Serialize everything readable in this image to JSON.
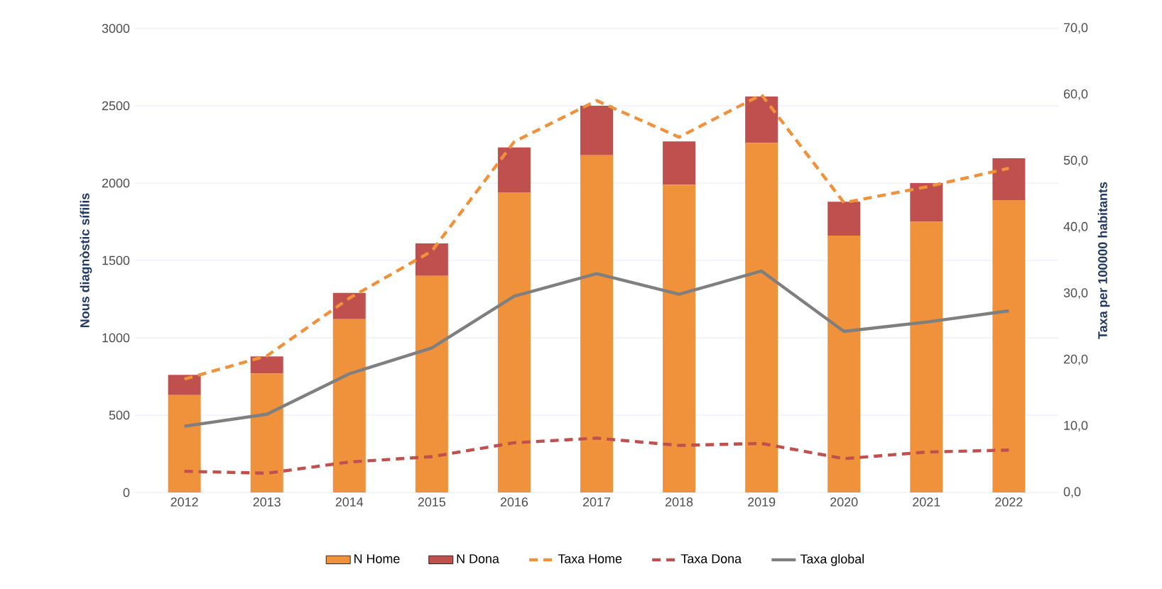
{
  "chart_data": {
    "type": "bar",
    "stacked": true,
    "categories": [
      "2012",
      "2013",
      "2014",
      "2015",
      "2016",
      "2017",
      "2018",
      "2019",
      "2020",
      "2021",
      "2022"
    ],
    "ylabel": "Nous diagnòstic sífilis",
    "y2label": "Taxa per 100000 habitants",
    "ylim": [
      0,
      3000
    ],
    "yticks": [
      0,
      500,
      1000,
      1500,
      2000,
      2500,
      3000
    ],
    "y2lim": [
      0,
      70
    ],
    "y2ticks": [
      {
        "value": 0,
        "label": "0,0"
      },
      {
        "value": 10,
        "label": "10,0"
      },
      {
        "value": 20,
        "label": "20,0"
      },
      {
        "value": 30,
        "label": "30,0"
      },
      {
        "value": 40,
        "label": "40,0"
      },
      {
        "value": 50,
        "label": "50,0"
      },
      {
        "value": 60,
        "label": "60,0"
      },
      {
        "value": 70,
        "label": "70,0"
      }
    ],
    "grid": "y",
    "legend": "bottom",
    "series": [
      {
        "name": "N Home",
        "color": "#f0923c",
        "values": [
          630,
          770,
          1120,
          1400,
          1940,
          2180,
          1990,
          2260,
          1660,
          1750,
          1890
        ]
      },
      {
        "name": "N Dona",
        "color": "#c0504d",
        "values": [
          130,
          110,
          170,
          210,
          290,
          320,
          280,
          300,
          220,
          250,
          270
        ]
      },
      {
        "name": "Taxa Home",
        "type": "line",
        "axis": "y2",
        "line_style": "dashed",
        "color": "#f0923c",
        "values": [
          17.1,
          20.6,
          29.3,
          36.4,
          52.9,
          59.1,
          53.6,
          60.0,
          43.7,
          46.1,
          48.9
        ]
      },
      {
        "name": "Taxa Dona",
        "type": "line",
        "axis": "y2",
        "line_style": "dashed",
        "color": "#c0504d",
        "values": [
          3.2,
          2.9,
          4.6,
          5.4,
          7.5,
          8.2,
          7.1,
          7.4,
          5.1,
          6.1,
          6.4
        ]
      },
      {
        "name": "Taxa global",
        "type": "line",
        "axis": "y2",
        "line_style": "solid",
        "color": "#7f7f7f",
        "values": [
          10.0,
          11.8,
          17.9,
          21.8,
          29.6,
          33.0,
          29.9,
          33.4,
          24.3,
          25.7,
          27.4
        ]
      }
    ]
  }
}
